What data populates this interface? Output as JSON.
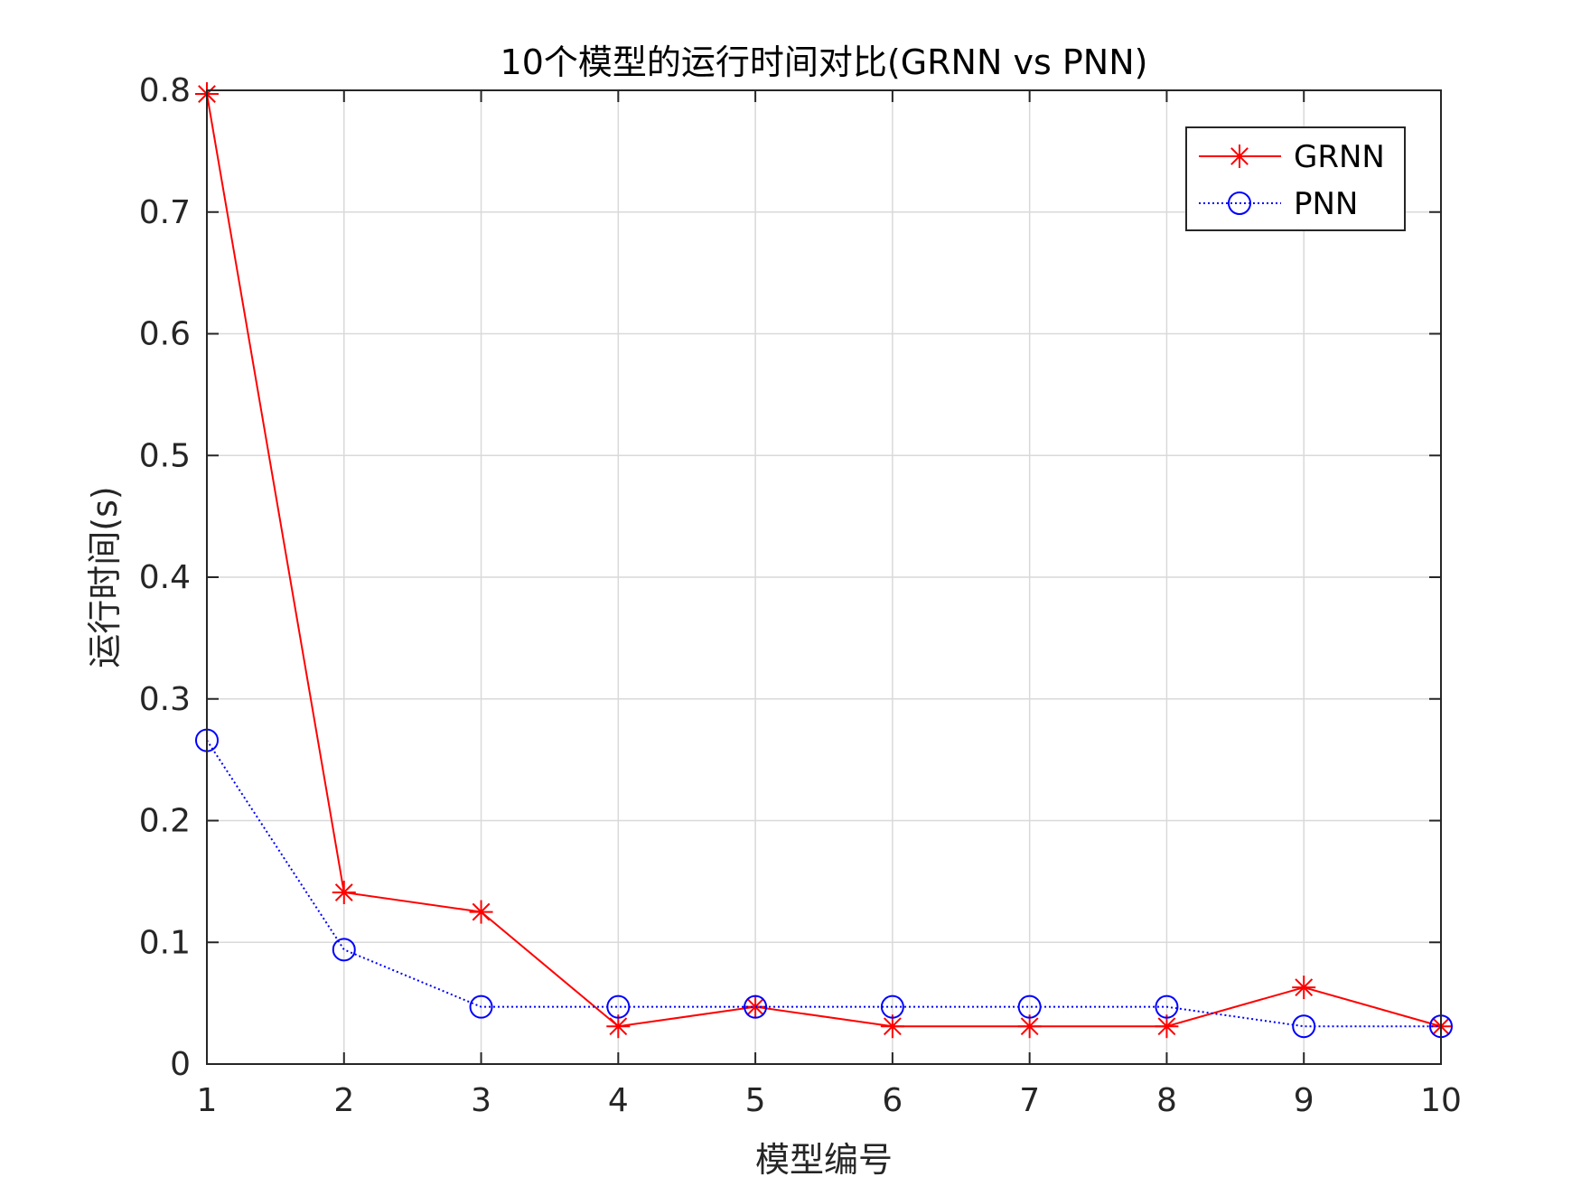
{
  "chart_data": {
    "type": "line",
    "title": "10个模型的运行时间对比(GRNN vs PNN)",
    "xlabel": "模型编号",
    "ylabel": "运行时间(s)",
    "x": [
      1,
      2,
      3,
      4,
      5,
      6,
      7,
      8,
      9,
      10
    ],
    "xlim": [
      1,
      10
    ],
    "ylim": [
      0,
      0.8
    ],
    "xticks": [
      1,
      2,
      3,
      4,
      5,
      6,
      7,
      8,
      9,
      10
    ],
    "yticks": [
      0,
      0.1,
      0.2,
      0.3,
      0.4,
      0.5,
      0.6,
      0.7,
      0.8
    ],
    "xtick_labels": [
      "1",
      "2",
      "3",
      "4",
      "5",
      "6",
      "7",
      "8",
      "9",
      "10"
    ],
    "ytick_labels": [
      "0",
      "0.1",
      "0.2",
      "0.3",
      "0.4",
      "0.5",
      "0.6",
      "0.7",
      "0.8"
    ],
    "grid": true,
    "legend_position": "top-right",
    "series": [
      {
        "name": "GRNN",
        "color": "#ff0000",
        "line_style": "solid",
        "marker": "asterisk",
        "values": [
          0.797,
          0.141,
          0.125,
          0.031,
          0.047,
          0.031,
          0.031,
          0.031,
          0.063,
          0.031
        ]
      },
      {
        "name": "PNN",
        "color": "#0000ff",
        "line_style": "dotted",
        "marker": "circle",
        "values": [
          0.266,
          0.094,
          0.047,
          0.047,
          0.047,
          0.047,
          0.047,
          0.047,
          0.031,
          0.031
        ]
      }
    ]
  }
}
